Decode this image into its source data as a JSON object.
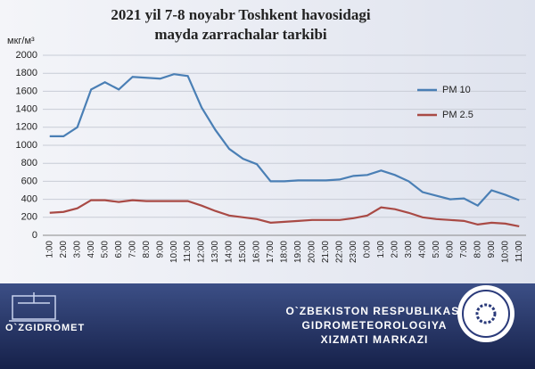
{
  "chart_data": {
    "type": "line",
    "title": "2021 yil 7-8 noyabr Toshkent  havosidagi",
    "subtitle": "mayda zarrachalar  tarkibi",
    "y_label": "мкг/м³",
    "categories": [
      "1:00",
      "2:00",
      "3:00",
      "4:00",
      "5:00",
      "6:00",
      "7:00",
      "8:00",
      "9:00",
      "10:00",
      "11:00",
      "12:00",
      "13:00",
      "14:00",
      "15:00",
      "16:00",
      "17:00",
      "18:00",
      "19:00",
      "20:00",
      "21:00",
      "22:00",
      "23:00",
      "0:00",
      "1:00",
      "2:00",
      "3:00",
      "4:00",
      "5:00",
      "6:00",
      "7:00",
      "8:00",
      "9:00",
      "10:00",
      "11:00"
    ],
    "series": [
      {
        "name": "PM 10",
        "color": "#4a7fb5",
        "values": [
          1100,
          1100,
          1200,
          1620,
          1700,
          1620,
          1760,
          1750,
          1740,
          1790,
          1770,
          1420,
          1170,
          960,
          850,
          790,
          600,
          600,
          610,
          610,
          610,
          620,
          660,
          670,
          720,
          670,
          600,
          480,
          440,
          400,
          410,
          330,
          500,
          450,
          390
        ]
      },
      {
        "name": "PM 2.5",
        "color": "#a94a45",
        "values": [
          250,
          260,
          300,
          390,
          390,
          370,
          390,
          380,
          380,
          380,
          380,
          330,
          270,
          220,
          200,
          180,
          140,
          150,
          160,
          170,
          170,
          170,
          190,
          220,
          310,
          290,
          250,
          200,
          180,
          170,
          160,
          120,
          140,
          130,
          100
        ]
      }
    ],
    "ylim": [
      0,
      2000
    ],
    "yticks": [
      0,
      200,
      400,
      600,
      800,
      1000,
      1200,
      1400,
      1600,
      1800,
      2000
    ],
    "grid": true,
    "legend": "right"
  },
  "footer": {
    "logo": "O`ZGIDROMET",
    "line1": "O`ZBEKISTON RESPUBLIKASI",
    "line2": "GIDROMETEOROLOGIYA",
    "line3": "XIZMATI MARKAZI"
  }
}
